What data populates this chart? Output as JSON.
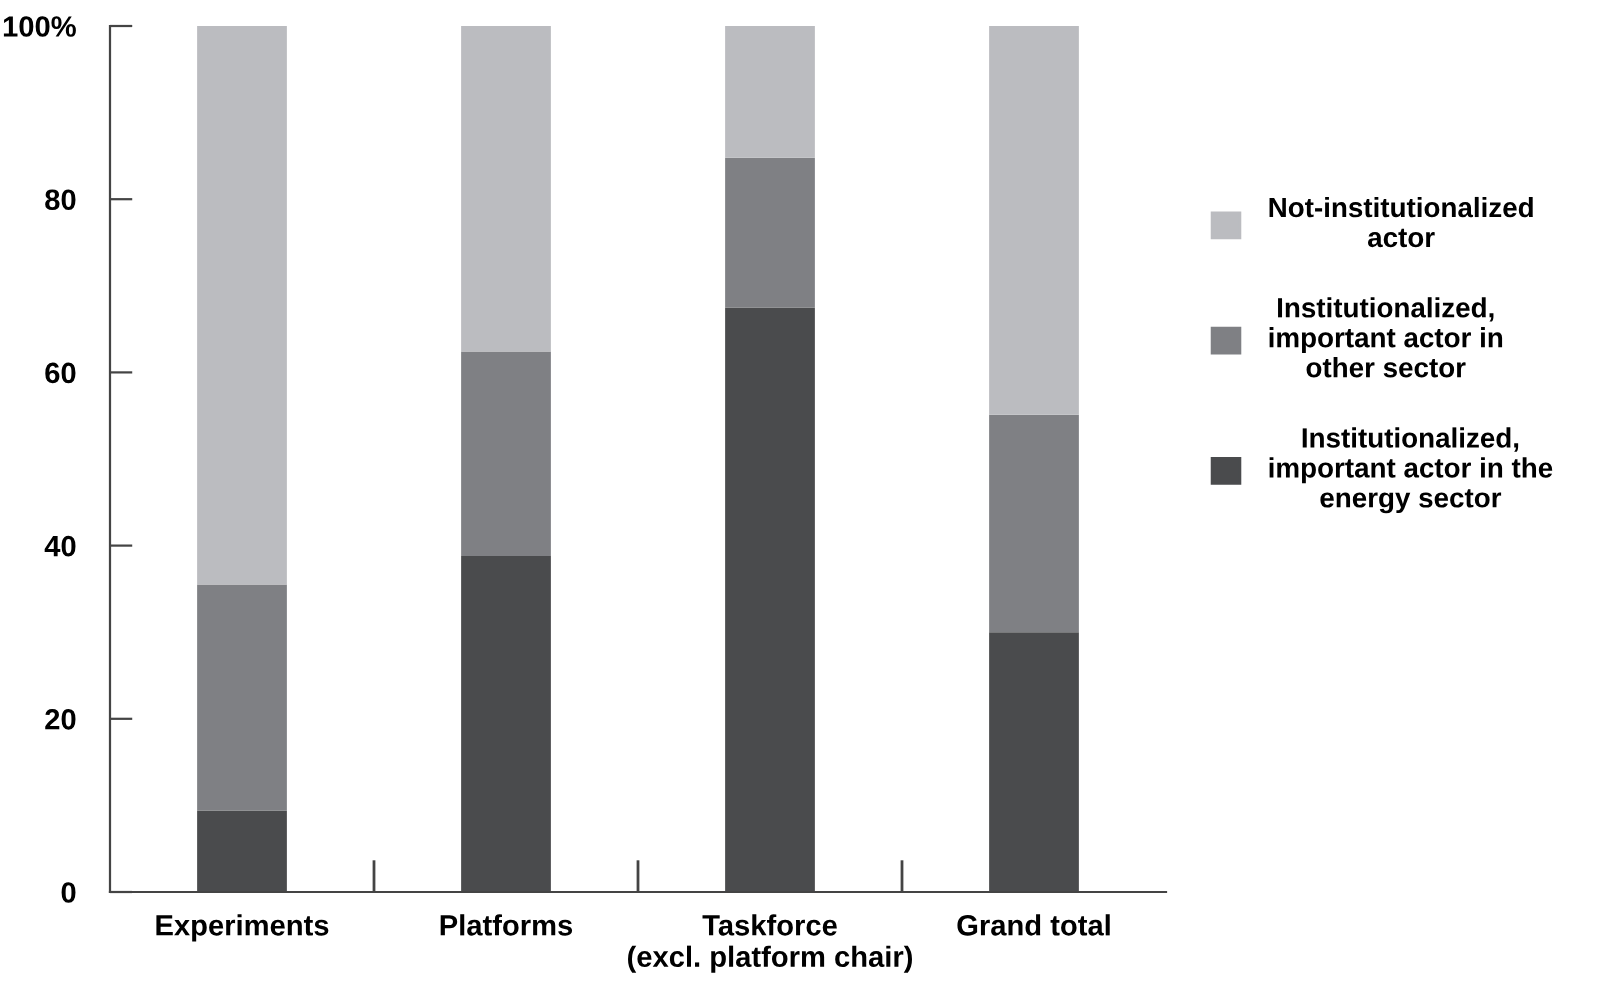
{
  "chart_data": {
    "type": "bar",
    "stacked": true,
    "categories": [
      "Experiments",
      "Platforms",
      "Taskforce\n(excl. platform chair)",
      "Grand total"
    ],
    "series": [
      {
        "name": "Institutionalized,\nimportant actor in the\nenergy sector",
        "color": "#4a4b4d",
        "values": [
          9.4,
          38.8,
          67.5,
          30.0
        ]
      },
      {
        "name": "Institutionalized,\nimportant actor in\nother sector",
        "color": "#7f8084",
        "values": [
          26.1,
          23.6,
          17.3,
          25.1
        ]
      },
      {
        "name": "Not-institutionalized\nactor",
        "color": "#bbbcc0",
        "values": [
          64.5,
          37.6,
          15.2,
          44.9
        ]
      }
    ],
    "ylim": [
      0,
      100
    ],
    "yticks": [
      0,
      20,
      40,
      60,
      80,
      {
        "value": 100,
        "label": "100%"
      }
    ],
    "grid": false,
    "legend": "right"
  }
}
